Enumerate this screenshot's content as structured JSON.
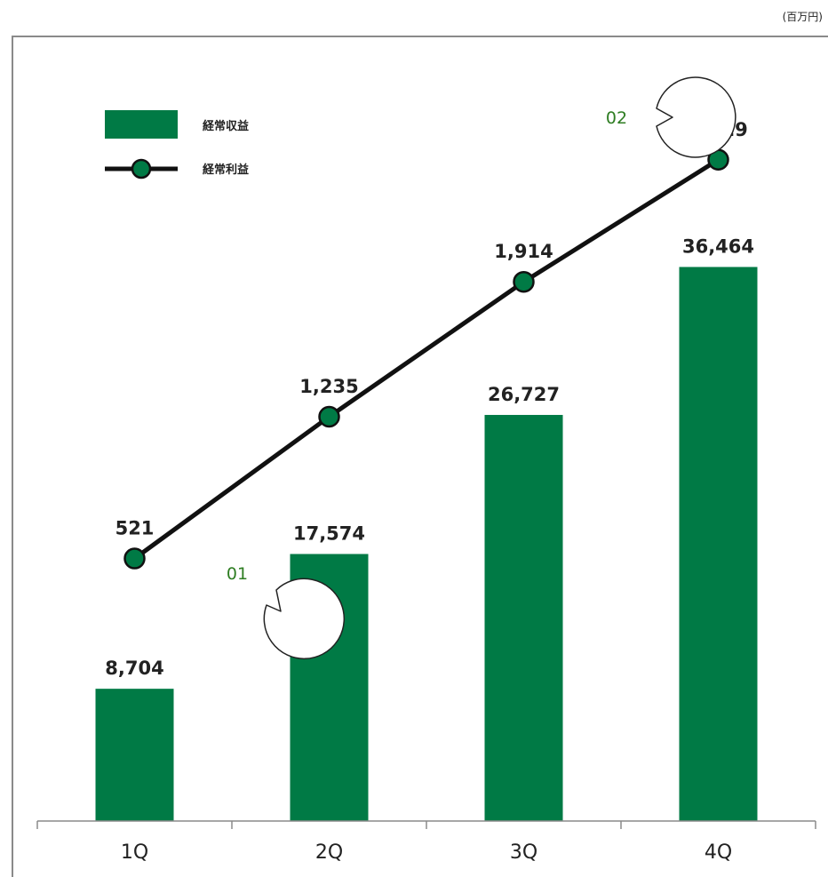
{
  "unit_label": "(百万円)",
  "colors": {
    "bar": "#007a45",
    "line": "#111111",
    "callout_text": "#2e7d22",
    "axis": "#8a8a8a"
  },
  "legend": {
    "bar_label": "経常収益",
    "line_label": "経常利益"
  },
  "callouts": [
    {
      "text": "01",
      "target": "2Q"
    },
    {
      "text": "02",
      "target": "4Q"
    }
  ],
  "chart_data": {
    "type": "bar",
    "categories": [
      "1Q",
      "2Q",
      "3Q",
      "4Q"
    ],
    "series": [
      {
        "name": "経常収益",
        "type": "bar",
        "values": [
          8704,
          17574,
          26727,
          36464
        ],
        "labels": [
          "8,704",
          "17,574",
          "26,727",
          "36,464"
        ]
      },
      {
        "name": "経常利益",
        "type": "line",
        "values": [
          521,
          1235,
          1914,
          2529
        ],
        "labels": [
          "521",
          "1,235",
          "1,914",
          "2,529"
        ]
      }
    ],
    "title": "",
    "xlabel": "",
    "ylabel": "",
    "legend_position": "top-left",
    "grid": false
  }
}
